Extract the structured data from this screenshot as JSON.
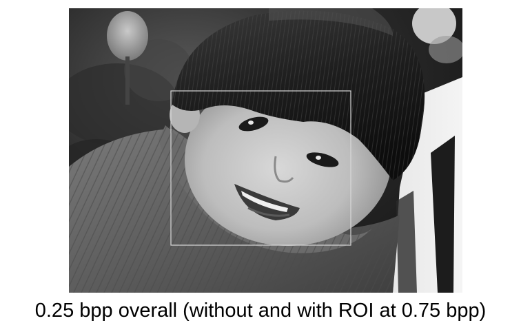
{
  "figure": {
    "caption": "0.25 bpp overall (without and with ROI at 0.75 bpp)",
    "image_mode": "grayscale"
  }
}
